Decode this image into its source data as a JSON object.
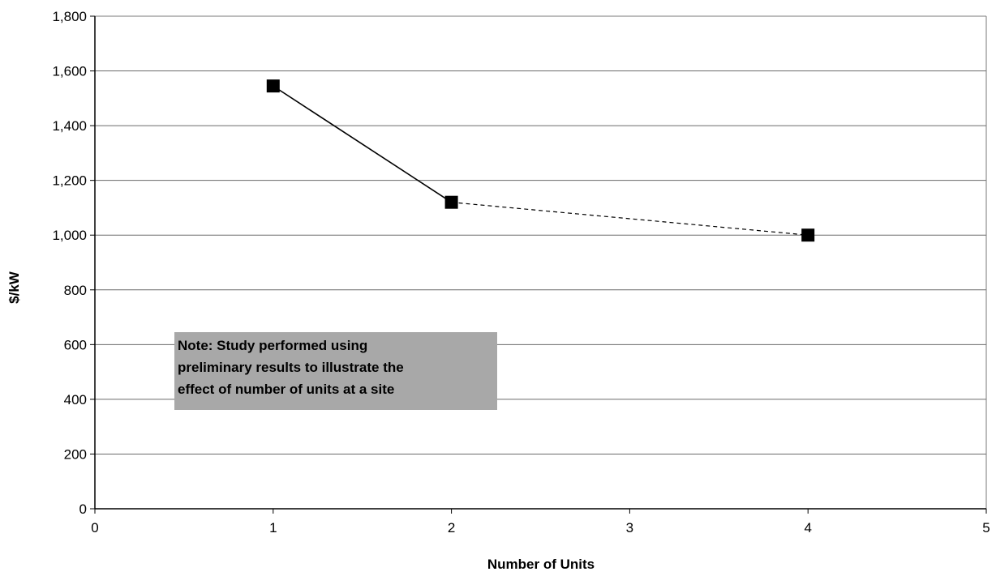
{
  "chart_data": {
    "type": "line",
    "title": "",
    "xlabel": "Number of Units",
    "ylabel": "$/kW",
    "xlim": [
      0,
      5
    ],
    "ylim": [
      0,
      1800
    ],
    "x_ticks": [
      0,
      1,
      2,
      3,
      4,
      5
    ],
    "y_ticks": [
      0,
      200,
      400,
      600,
      800,
      1000,
      1200,
      1400,
      1600,
      1800
    ],
    "y_tick_labels": [
      "0",
      "200",
      "400",
      "600",
      "800",
      "1,000",
      "1,200",
      "1,400",
      "1,600",
      "1,800"
    ],
    "grid": "horizontal",
    "legend": "none",
    "series": [
      {
        "points": [
          {
            "x": 1,
            "y": 1545
          },
          {
            "x": 2,
            "y": 1120
          },
          {
            "x": 4,
            "y": 1000
          }
        ],
        "segment_styles": [
          "solid",
          "dashed"
        ],
        "marker": "square",
        "color": "#000000"
      }
    ],
    "annotations": [
      {
        "lines": [
          "Note:  Study performed using",
          "preliminary results to illustrate the",
          "effect of number of units at a site"
        ],
        "background": "#a8a8a8"
      }
    ]
  }
}
